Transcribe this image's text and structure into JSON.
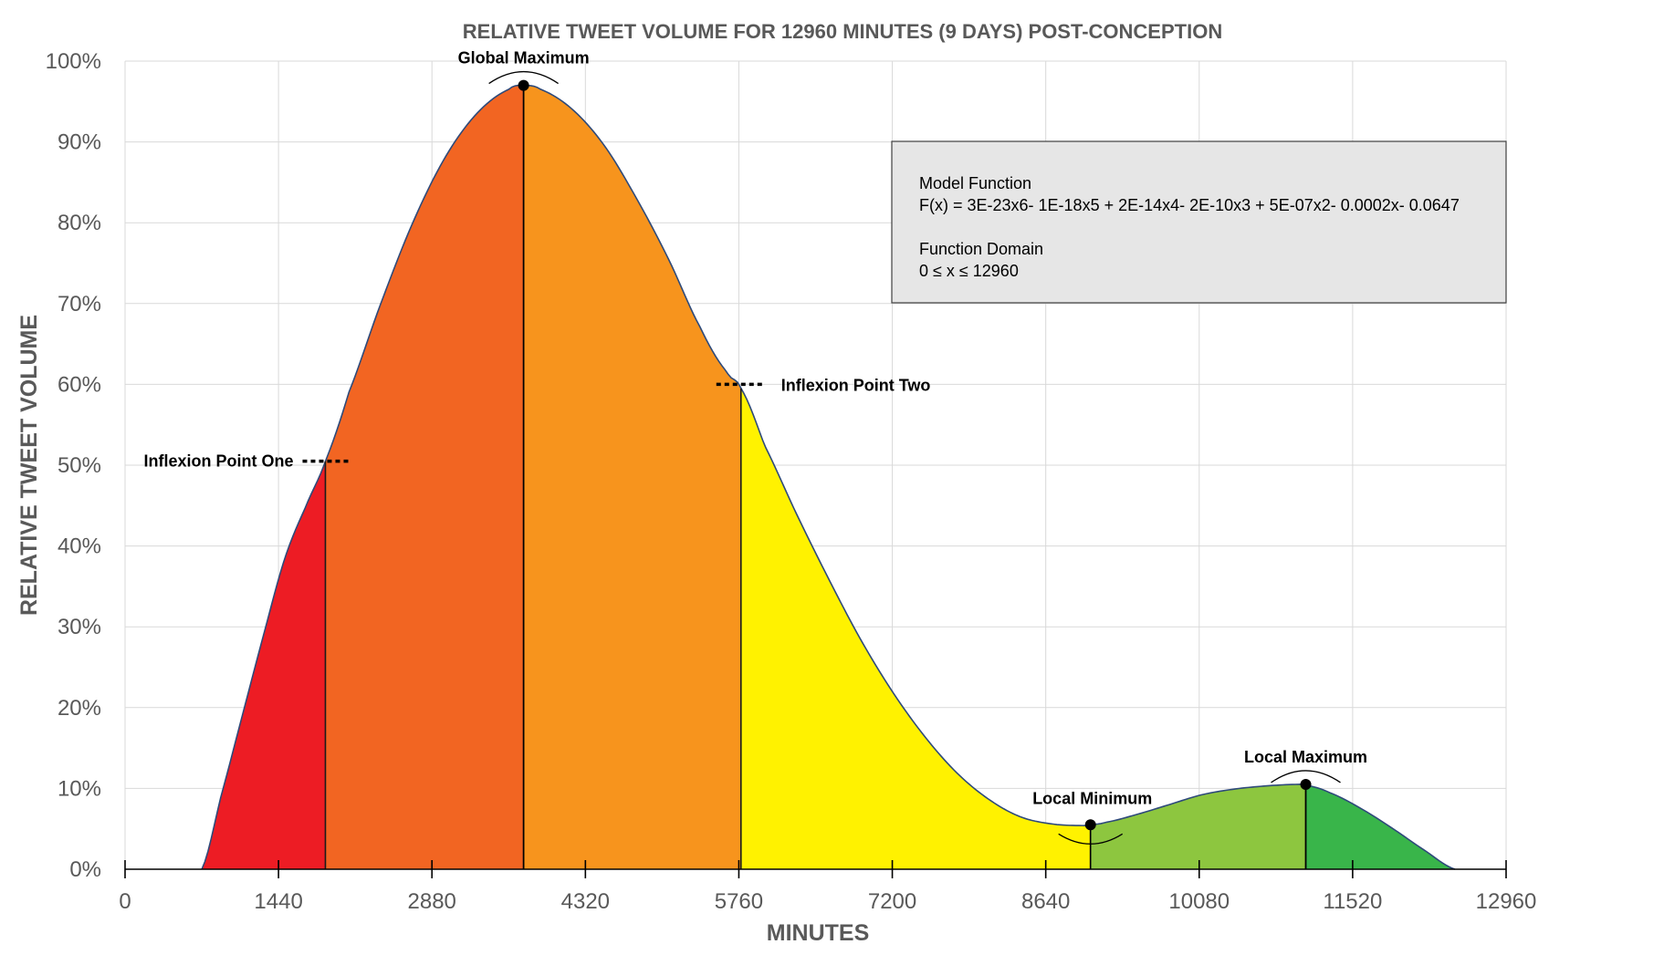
{
  "chart_data": {
    "type": "area",
    "title": "RELATIVE TWEET VOLUME FOR 12960 MINUTES (9 DAYS) POST-CONCEPTION",
    "xlabel": "MINUTES",
    "ylabel": "RELATIVE TWEET VOLUME",
    "xlim": [
      0,
      12960
    ],
    "ylim": [
      0,
      100
    ],
    "x_ticks": [
      0,
      1440,
      2880,
      4320,
      5760,
      7200,
      8640,
      10080,
      11520,
      12960
    ],
    "x_tick_labels": [
      "0",
      "1440",
      "2880",
      "4320",
      "5760",
      "7200",
      "8640",
      "10080",
      "11520",
      "12960"
    ],
    "y_ticks": [
      0,
      10,
      20,
      30,
      40,
      50,
      60,
      70,
      80,
      90,
      100
    ],
    "y_tick_labels": [
      "0%",
      "10%",
      "20%",
      "30%",
      "40%",
      "50%",
      "60%",
      "70%",
      "80%",
      "90%",
      "100%"
    ],
    "grid": true,
    "curve": {
      "x": [
        720,
        900,
        1100,
        1300,
        1500,
        1700,
        1880,
        2100,
        2400,
        2700,
        3000,
        3300,
        3600,
        3740,
        3900,
        4200,
        4500,
        4800,
        5100,
        5400,
        5650,
        5780,
        6000,
        6300,
        6600,
        6900,
        7200,
        7500,
        7800,
        8100,
        8400,
        8700,
        9000,
        9060,
        9200,
        9500,
        9800,
        10100,
        10400,
        10700,
        11000,
        11080,
        11300,
        11600,
        11900,
        12200,
        12480
      ],
      "y": [
        0,
        9,
        19,
        29,
        38.5,
        45,
        50.5,
        59,
        70,
        80,
        88,
        93.5,
        96.5,
        97,
        96.5,
        94,
        89.5,
        83,
        75.5,
        67,
        61.5,
        59.5,
        52.5,
        44,
        36,
        28.5,
        22,
        16.5,
        12,
        8.7,
        6.5,
        5.6,
        5.4,
        5.5,
        5.8,
        6.8,
        8,
        9.2,
        9.9,
        10.3,
        10.5,
        10.4,
        9.5,
        7.5,
        5,
        2.3,
        0
      ]
    },
    "segments": [
      {
        "x_start": 720,
        "x_end": 1880,
        "color": "#ED1C24"
      },
      {
        "x_start": 1880,
        "x_end": 3740,
        "color": "#F26522"
      },
      {
        "x_start": 3740,
        "x_end": 5780,
        "color": "#F7941D"
      },
      {
        "x_start": 5780,
        "x_end": 9060,
        "color": "#FFF200"
      },
      {
        "x_start": 9060,
        "x_end": 11080,
        "color": "#8DC63F"
      },
      {
        "x_start": 11080,
        "x_end": 12480,
        "color": "#39B54A"
      }
    ],
    "annotations": [
      {
        "label": "Global Maximum",
        "x": 3740,
        "y": 97,
        "kind": "maximum"
      },
      {
        "label": "Inflexion Point One",
        "x": 1880,
        "y": 50.5,
        "kind": "inflexion"
      },
      {
        "label": "Inflexion Point Two",
        "x": 5780,
        "y": 60,
        "kind": "inflexion"
      },
      {
        "label": "Local Minimum",
        "x": 9060,
        "y": 5.5,
        "kind": "minimum"
      },
      {
        "label": "Local Maximum",
        "x": 11080,
        "y": 10.5,
        "kind": "maximum"
      }
    ],
    "model_box": {
      "heading1": "Model Function",
      "line1": "F(x) = 3E-23x6- 1E-18x5 + 2E-14x4- 2E-10x3 + 5E-07x2- 0.0002x- 0.0647",
      "heading2": "Function Domain",
      "line2": "0 ≤ x ≤ 12960"
    }
  }
}
